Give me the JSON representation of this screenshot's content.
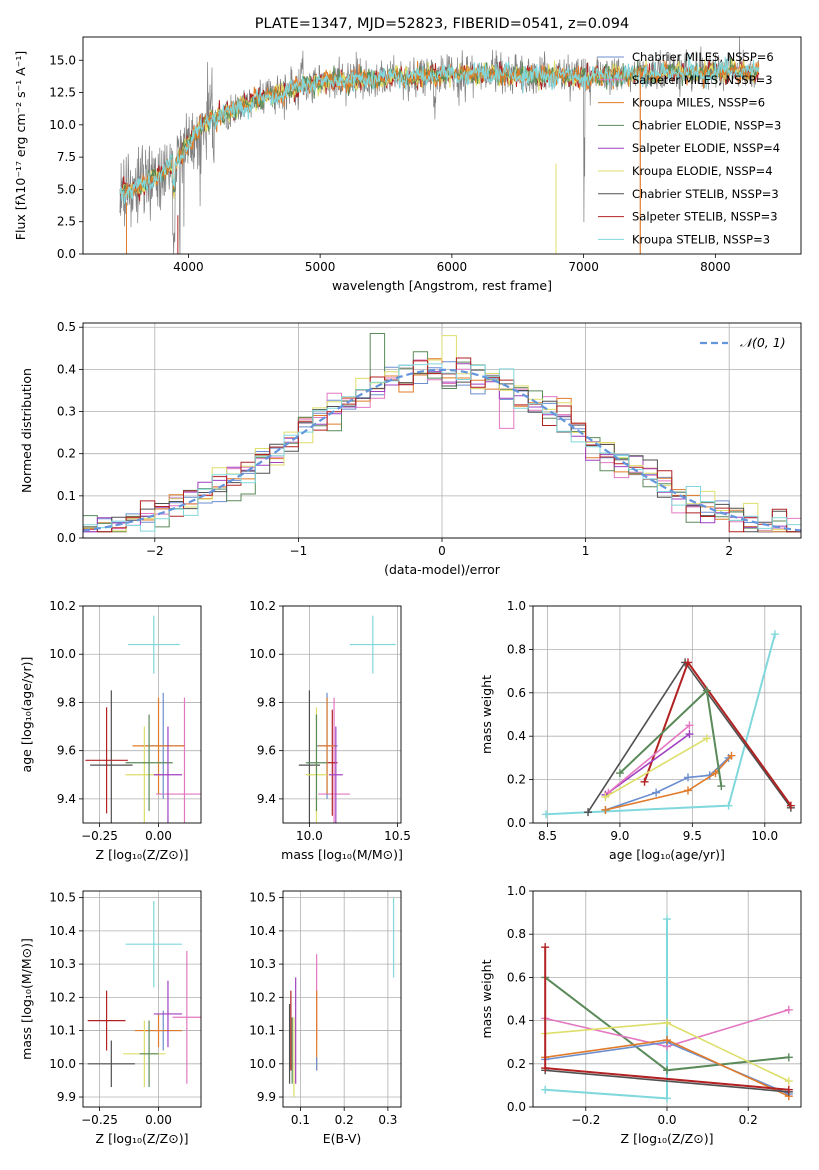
{
  "colors": {
    "chabrier_miles": "#6b8ecf",
    "salpeter_miles": "#e377c2",
    "kroupa_miles": "#e07b2a",
    "chabrier_elodie": "#5a8a5a",
    "salpeter_elodie": "#a040c0",
    "kroupa_elodie": "#dede6a",
    "chabrier_stelib": "#505050",
    "salpeter_stelib": "#b22222",
    "kroupa_stelib": "#80d8dc",
    "normal": "#6495dd"
  },
  "chart_data": [
    {
      "type": "line",
      "title": "PLATE=1347, MJD=52823, FIBERID=0541, z=0.094",
      "xlabel": "wavelength [Angstrom, rest frame]",
      "ylabel": "Flux [fλ10⁻¹⁷ erg cm⁻² s⁻¹ A⁻¹]",
      "xlim": [
        3200,
        8650
      ],
      "ylim": [
        0,
        16.8
      ],
      "xticks": [
        "4000",
        "5000",
        "6000",
        "7000",
        "8000"
      ],
      "xtick_values": [
        4000,
        5000,
        6000,
        7000,
        8000
      ],
      "yticks": [
        "0.0",
        "2.5",
        "5.0",
        "7.5",
        "10.0",
        "12.5",
        "15.0"
      ],
      "ytick_values": [
        0,
        2.5,
        5,
        7.5,
        10,
        12.5,
        15
      ],
      "spectrum_model": {
        "x": [
          3500,
          3700,
          3900,
          4100,
          4300,
          4600,
          5000,
          5400,
          5800,
          6200,
          6600,
          7000,
          7400,
          7800,
          8200
        ],
        "y": [
          4.8,
          5.5,
          7.0,
          10.0,
          11.0,
          12.2,
          13.3,
          13.6,
          13.8,
          14.0,
          13.8,
          13.7,
          13.9,
          14.0,
          14.2
        ]
      },
      "legend": [
        "Chabrier MILES, NSSP=6",
        "Salpeter MILES, NSSP=3",
        "Kroupa MILES, NSSP=6",
        "Chabrier ELODIE, NSSP=3",
        "Salpeter ELODIE, NSSP=4",
        "Kroupa ELODIE, NSSP=4",
        "Chabrier STELIB, NSSP=3",
        "Salpeter STELIB, NSSP=3",
        "Kroupa STELIB, NSSP=3"
      ]
    },
    {
      "type": "histogram",
      "xlabel": "(data-model)/error",
      "ylabel": "Normed distribution",
      "xlim": [
        -2.5,
        2.5
      ],
      "ylim": [
        0,
        0.51
      ],
      "xticks": [
        "−2",
        "−1",
        "0",
        "1",
        "2"
      ],
      "xtick_values": [
        -2,
        -1,
        0,
        1,
        2
      ],
      "yticks": [
        "0.0",
        "0.1",
        "0.2",
        "0.3",
        "0.4",
        "0.5"
      ],
      "ytick_values": [
        0,
        0.1,
        0.2,
        0.3,
        0.4,
        0.5
      ],
      "legend": [
        "𝒩(0, 1)"
      ],
      "bin_width": 0.1,
      "bin_start": -2.5
    },
    {
      "type": "errorbar",
      "xlabel": "Z [log₁₀(Z/Z⊙)]",
      "ylabel": "age  [log₁₀(age/yr)]",
      "xlim": [
        -0.32,
        0.18
      ],
      "ylim": [
        9.3,
        10.2
      ],
      "xticks": [
        "−0.25",
        "0.00"
      ],
      "xtick_values": [
        -0.25,
        0.0
      ],
      "yticks": [
        "9.4",
        "9.6",
        "9.8",
        "10.0",
        "10.2"
      ],
      "ytick_values": [
        9.4,
        9.6,
        9.8,
        10.0,
        10.2
      ],
      "points": [
        {
          "c": "kroupa_stelib",
          "x": -0.02,
          "y": 10.04,
          "xe": 0.11,
          "ye": 0.12
        },
        {
          "c": "salpeter_miles",
          "x": 0.11,
          "y": 9.42,
          "xe": 0.12,
          "ye": 0.4
        },
        {
          "c": "chabrier_stelib",
          "x": -0.2,
          "y": 9.54,
          "xe": 0.09,
          "ye": 0.31
        },
        {
          "c": "salpeter_stelib",
          "x": -0.22,
          "y": 9.56,
          "xe": 0.09,
          "ye": 0.22
        },
        {
          "c": "chabrier_miles",
          "x": 0.02,
          "y": 9.62,
          "xe": 0.09,
          "ye": 0.22
        },
        {
          "c": "kroupa_miles",
          "x": 0.0,
          "y": 9.62,
          "xe": 0.11,
          "ye": 0.2
        },
        {
          "c": "kroupa_elodie",
          "x": -0.06,
          "y": 9.5,
          "xe": 0.08,
          "ye": 0.2
        },
        {
          "c": "chabrier_elodie",
          "x": -0.04,
          "y": 9.55,
          "xe": 0.1,
          "ye": 0.2
        },
        {
          "c": "salpeter_elodie",
          "x": 0.04,
          "y": 9.5,
          "xe": 0.06,
          "ye": 0.2
        }
      ]
    },
    {
      "type": "errorbar",
      "xlabel": "mass [log₁₀(M/M⊙)]",
      "ylabel": "",
      "xlim": [
        9.85,
        10.52
      ],
      "ylim": [
        9.3,
        10.2
      ],
      "xticks": [
        "10.0",
        "10.5"
      ],
      "xtick_values": [
        10.0,
        10.5
      ],
      "yticks": [
        "9.4",
        "9.6",
        "9.8",
        "10.0",
        "10.2"
      ],
      "ytick_values": [
        9.4,
        9.6,
        9.8,
        10.0,
        10.2
      ],
      "points": [
        {
          "c": "kroupa_stelib",
          "x": 10.36,
          "y": 10.04,
          "xe": 0.13,
          "ye": 0.12
        },
        {
          "c": "salpeter_miles",
          "x": 10.14,
          "y": 9.42,
          "xe": 0.09,
          "ye": 0.4
        },
        {
          "c": "chabrier_stelib",
          "x": 10.0,
          "y": 9.54,
          "xe": 0.06,
          "ye": 0.31
        },
        {
          "c": "salpeter_stelib",
          "x": 10.13,
          "y": 9.55,
          "xe": 0.03,
          "ye": 0.22
        },
        {
          "c": "chabrier_miles",
          "x": 10.1,
          "y": 9.62,
          "xe": 0.06,
          "ye": 0.22
        },
        {
          "c": "kroupa_miles",
          "x": 10.1,
          "y": 9.62,
          "xe": 0.05,
          "ye": 0.2
        },
        {
          "c": "kroupa_elodie",
          "x": 10.04,
          "y": 9.5,
          "xe": 0.06,
          "ye": 0.28
        },
        {
          "c": "chabrier_elodie",
          "x": 10.04,
          "y": 9.55,
          "xe": 0.06,
          "ye": 0.2
        },
        {
          "c": "salpeter_elodie",
          "x": 10.15,
          "y": 9.5,
          "xe": 0.04,
          "ye": 0.2
        }
      ]
    },
    {
      "type": "line",
      "xlabel": "age  [log₁₀(age/yr)]",
      "ylabel": "mass weight",
      "xlim": [
        8.4,
        10.25
      ],
      "ylim": [
        0,
        1.0
      ],
      "xticks": [
        "8.5",
        "9.0",
        "9.5",
        "10.0"
      ],
      "xtick_values": [
        8.5,
        9.0,
        9.5,
        10.0
      ],
      "yticks": [
        "0.0",
        "0.2",
        "0.4",
        "0.6",
        "0.8",
        "1.0"
      ],
      "ytick_values": [
        0,
        0.2,
        0.4,
        0.6,
        0.8,
        1.0
      ],
      "series": [
        {
          "c": "kroupa_stelib",
          "x": [
            8.49,
            9.75,
            10.07
          ],
          "y": [
            0.04,
            0.08,
            0.87
          ]
        },
        {
          "c": "chabrier_stelib",
          "x": [
            8.78,
            9.45,
            10.18
          ],
          "y": [
            0.05,
            0.74,
            0.07
          ]
        },
        {
          "c": "salpeter_stelib",
          "x": [
            9.17,
            9.47,
            10.18
          ],
          "y": [
            0.19,
            0.74,
            0.08
          ]
        },
        {
          "c": "chabrier_miles",
          "x": [
            8.9,
            9.25,
            9.47,
            9.62,
            9.75
          ],
          "y": [
            0.06,
            0.14,
            0.21,
            0.22,
            0.3
          ]
        },
        {
          "c": "kroupa_miles",
          "x": [
            8.9,
            9.47,
            9.66,
            9.77
          ],
          "y": [
            0.06,
            0.15,
            0.23,
            0.31
          ]
        },
        {
          "c": "chabrier_elodie",
          "x": [
            9.0,
            9.6,
            9.7
          ],
          "y": [
            0.23,
            0.61,
            0.17
          ]
        },
        {
          "c": "salpeter_elodie",
          "x": [
            8.9,
            9.48
          ],
          "y": [
            0.13,
            0.41
          ]
        },
        {
          "c": "salpeter_miles",
          "x": [
            8.92,
            9.48
          ],
          "y": [
            0.14,
            0.45
          ]
        },
        {
          "c": "kroupa_elodie",
          "x": [
            8.9,
            9.6
          ],
          "y": [
            0.12,
            0.39
          ]
        }
      ]
    },
    {
      "type": "errorbar",
      "xlabel": "Z [log₁₀(Z/Z⊙)]",
      "ylabel": "mass [log₁₀(M/M⊙)]",
      "xlim": [
        -0.32,
        0.18
      ],
      "ylim": [
        9.87,
        10.52
      ],
      "xticks": [
        "−0.25",
        "0.00"
      ],
      "xtick_values": [
        -0.25,
        0.0
      ],
      "yticks": [
        "9.9",
        "10.0",
        "10.1",
        "10.2",
        "10.3",
        "10.4",
        "10.5"
      ],
      "ytick_values": [
        9.9,
        10.0,
        10.1,
        10.2,
        10.3,
        10.4,
        10.5
      ],
      "points": [
        {
          "c": "kroupa_stelib",
          "x": -0.02,
          "y": 10.36,
          "xe": 0.12,
          "ye": 0.13
        },
        {
          "c": "salpeter_miles",
          "x": 0.12,
          "y": 10.14,
          "xe": 0.06,
          "ye": 0.2
        },
        {
          "c": "chabrier_stelib",
          "x": -0.2,
          "y": 10.0,
          "xe": 0.1,
          "ye": 0.07
        },
        {
          "c": "salpeter_stelib",
          "x": -0.22,
          "y": 10.13,
          "xe": 0.08,
          "ye": 0.09
        },
        {
          "c": "chabrier_miles",
          "x": 0.02,
          "y": 10.1,
          "xe": 0.08,
          "ye": 0.06
        },
        {
          "c": "kroupa_miles",
          "x": 0.0,
          "y": 10.1,
          "xe": 0.1,
          "ye": 0.05
        },
        {
          "c": "kroupa_elodie",
          "x": -0.06,
          "y": 10.03,
          "xe": 0.09,
          "ye": 0.1
        },
        {
          "c": "chabrier_elodie",
          "x": -0.04,
          "y": 10.03,
          "xe": 0.04,
          "ye": 0.1
        },
        {
          "c": "salpeter_elodie",
          "x": 0.04,
          "y": 10.15,
          "xe": 0.06,
          "ye": 0.1
        }
      ]
    },
    {
      "type": "errorbar",
      "xlabel": "E(B-V)",
      "ylabel": "",
      "xlim": [
        0.06,
        0.33
      ],
      "ylim": [
        9.87,
        10.52
      ],
      "xticks": [
        "0.1",
        "0.2",
        "0.3"
      ],
      "xtick_values": [
        0.1,
        0.2,
        0.3
      ],
      "yticks": [
        "9.9",
        "10.0",
        "10.1",
        "10.2",
        "10.3",
        "10.4",
        "10.5"
      ],
      "ytick_values": [
        9.9,
        10.0,
        10.1,
        10.2,
        10.3,
        10.4,
        10.5
      ],
      "points": [
        {
          "c": "kroupa_stelib",
          "x": 0.313,
          "y": 10.38,
          "xe": 0,
          "ye": 0.12
        },
        {
          "c": "salpeter_miles",
          "x": 0.137,
          "y": 10.2,
          "xe": 0,
          "ye": 0.13
        },
        {
          "c": "kroupa_miles",
          "x": 0.137,
          "y": 10.1,
          "xe": 0,
          "ye": 0.12
        },
        {
          "c": "chabrier_miles",
          "x": 0.137,
          "y": 10.0,
          "xe": 0,
          "ye": 0.02
        },
        {
          "c": "chabrier_stelib",
          "x": 0.075,
          "y": 10.06,
          "xe": 0,
          "ye": 0.12
        },
        {
          "c": "salpeter_stelib",
          "x": 0.078,
          "y": 10.1,
          "xe": 0,
          "ye": 0.12
        },
        {
          "c": "chabrier_elodie",
          "x": 0.081,
          "y": 10.04,
          "xe": 0,
          "ye": 0.1
        },
        {
          "c": "kroupa_elodie",
          "x": 0.085,
          "y": 10.02,
          "xe": 0,
          "ye": 0.12
        },
        {
          "c": "salpeter_elodie",
          "x": 0.089,
          "y": 10.1,
          "xe": 0,
          "ye": 0.16
        }
      ]
    },
    {
      "type": "line",
      "xlabel": "Z [log₁₀(Z/Z⊙)]",
      "ylabel": "mass weight",
      "xlim": [
        -0.33,
        0.33
      ],
      "ylim": [
        0,
        1.0
      ],
      "xticks": [
        "−0.2",
        "0.0",
        "0.2"
      ],
      "xtick_values": [
        -0.2,
        0.0,
        0.2
      ],
      "yticks": [
        "0.0",
        "0.2",
        "0.4",
        "0.6",
        "0.8",
        "1.0"
      ],
      "ytick_values": [
        0,
        0.2,
        0.4,
        0.6,
        0.8,
        1.0
      ],
      "series": [
        {
          "c": "kroupa_stelib",
          "x": [
            -0.3,
            0.0,
            0.0
          ],
          "y": [
            0.08,
            0.04,
            0.87
          ]
        },
        {
          "c": "chabrier_elodie",
          "x": [
            -0.3,
            0.0,
            0.3
          ],
          "y": [
            0.6,
            0.17,
            0.23
          ]
        },
        {
          "c": "salpeter_miles",
          "x": [
            -0.3,
            0.0,
            0.3
          ],
          "y": [
            0.41,
            0.28,
            0.45
          ]
        },
        {
          "c": "kroupa_elodie",
          "x": [
            -0.3,
            0.0,
            0.3
          ],
          "y": [
            0.34,
            0.39,
            0.12
          ]
        },
        {
          "c": "chabrier_miles",
          "x": [
            -0.3,
            0.0,
            0.3
          ],
          "y": [
            0.22,
            0.3,
            0.06
          ]
        },
        {
          "c": "kroupa_miles",
          "x": [
            -0.3,
            0.0,
            0.3
          ],
          "y": [
            0.23,
            0.31,
            0.05
          ]
        },
        {
          "c": "chabrier_stelib",
          "x": [
            -0.3,
            0.3
          ],
          "y": [
            0.17,
            0.07
          ]
        },
        {
          "c": "salpeter_stelib",
          "x": [
            -0.3,
            -0.3,
            0.3
          ],
          "y": [
            0.74,
            0.18,
            0.08
          ]
        }
      ]
    }
  ]
}
